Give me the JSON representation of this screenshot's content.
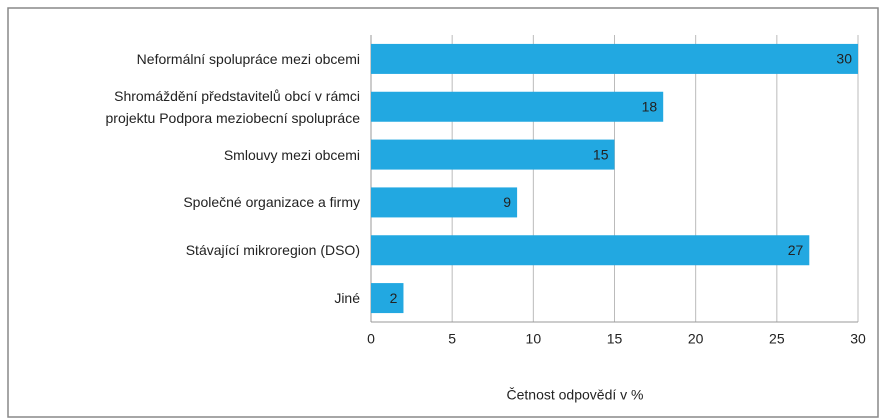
{
  "chart_data": {
    "type": "bar",
    "orientation": "horizontal",
    "categories": [
      "Neformální spolupráce mezi obcemi",
      "Shromáždění představitelů obcí v rámci\nprojektu Podpora meziobecní spolupráce",
      "Smlouvy mezi obcemi",
      "Společné organizace a firmy",
      "Stávající mikroregion (DSO)",
      "Jiné"
    ],
    "values": [
      30,
      18,
      15,
      9,
      27,
      2
    ],
    "color": "#22a8e1",
    "xlabel": "Četnost odpovědí v %",
    "xlim": [
      0,
      30
    ],
    "xticks": [
      0,
      5,
      10,
      15,
      20,
      25,
      30
    ],
    "grid": true
  }
}
